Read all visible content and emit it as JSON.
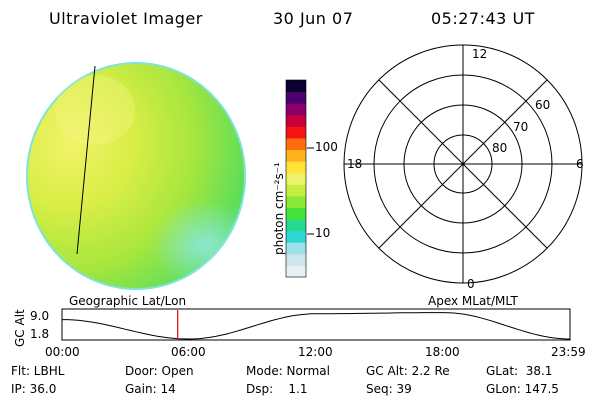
{
  "header": {
    "title": "Ultraviolet Imager",
    "date": "30 Jun 07",
    "time": "05:27:43 UT"
  },
  "colorbar": {
    "unit_label": "photon cm⁻²s⁻¹",
    "tick_100": "100",
    "tick_10": "10",
    "colors": [
      "#e8f0f4",
      "#cfe6ef",
      "#9fe0e8",
      "#2fd6d2",
      "#25d98f",
      "#45e33a",
      "#8ae83a",
      "#c4ee40",
      "#eef26a",
      "#ffe23a",
      "#ffb21c",
      "#ff6c10",
      "#f41412",
      "#c8003c",
      "#8a006a",
      "#4d0070",
      "#0c0030"
    ]
  },
  "polar_grid": {
    "mlt_top": "12",
    "mlt_right": "6",
    "mlt_left": "18",
    "mlt_bottom": "0",
    "lat_60": "60",
    "lat_70": "70",
    "lat_80": "80"
  },
  "bottom_panel": {
    "left_title": "Geographic Lat/Lon",
    "right_title": "Apex MLat/MLT",
    "y_label": "GC Alt",
    "y_max": "9.0",
    "y_min": "1.8",
    "x_ticks": [
      "00:00",
      "06:00",
      "12:00",
      "18:00",
      "23:59"
    ]
  },
  "status": {
    "flt": "Flt: LBHL",
    "ip": "IP: 36.0",
    "door": "Door: Open",
    "gain": "Gain: 14",
    "mode": "Mode: Normal",
    "dsp": "Dsp:    1.1",
    "gc_alt": "GC Alt: 2.2 Re",
    "seq": "Seq: 39",
    "glat": "GLat:  38.1",
    "glon": "GLon: 147.5"
  },
  "chart_data": {
    "type": "line",
    "title": "",
    "xlabel": "",
    "ylabel": "GC Alt",
    "x": [
      "00:00",
      "06:00",
      "12:00",
      "18:00",
      "23:59"
    ],
    "series": [
      {
        "values": [
          6.8,
          1.8,
          8.3,
          8.6,
          1.8
        ]
      }
    ],
    "ylim": [
      1.8,
      9.0
    ],
    "current_time": "05:27:43"
  }
}
